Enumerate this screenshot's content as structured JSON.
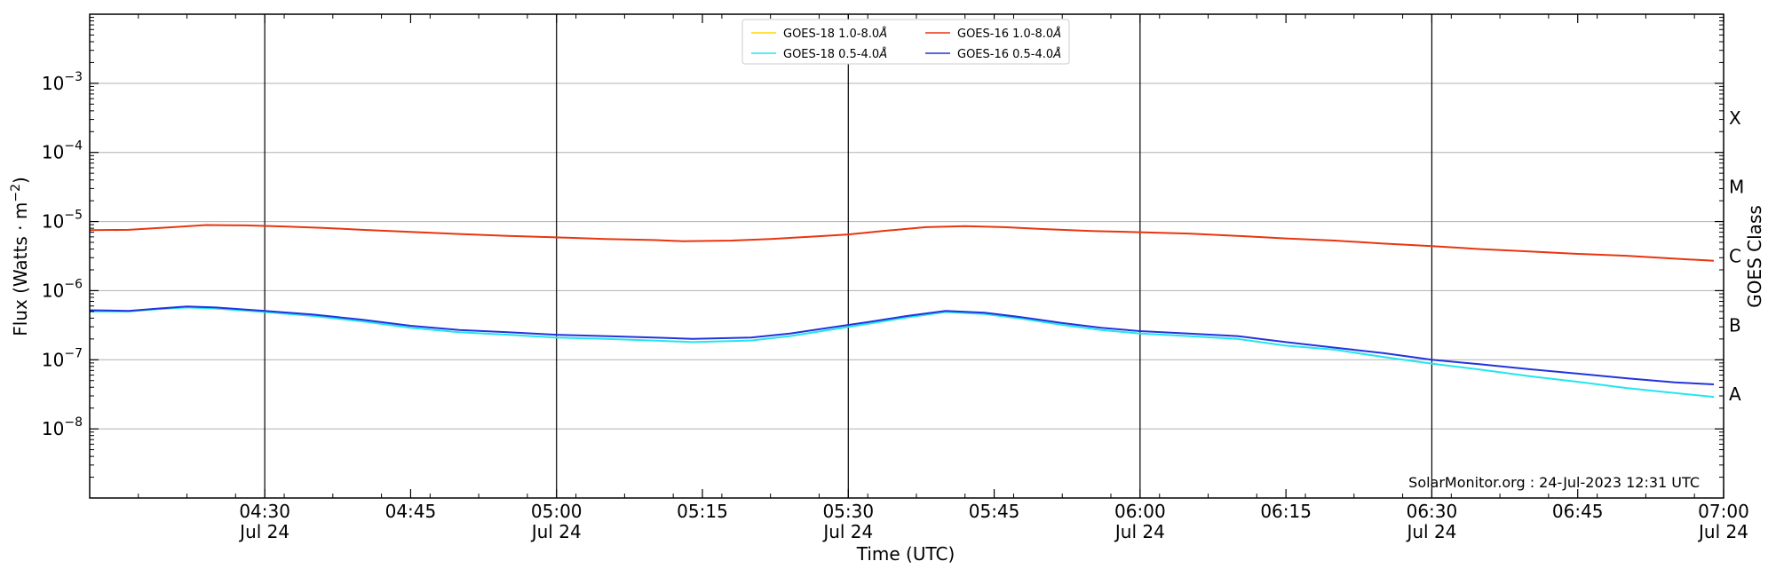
{
  "chart_data": {
    "type": "line",
    "xlabel": "Time (UTC)",
    "ylabel": "Flux (Watts · m",
    "ylabel_sup": "−2",
    "ylabel_close": ")",
    "y2label": "GOES Class",
    "y_scale": "log",
    "ylim": [
      1e-09,
      0.01
    ],
    "xlim": [
      "04:12",
      "07:00"
    ],
    "grid": {
      "horizontal": true,
      "vertical_major": true
    },
    "legend_position": "top-center",
    "y_ticks": [
      {
        "exp": "−8",
        "value": 1e-08
      },
      {
        "exp": "−7",
        "value": 1e-07
      },
      {
        "exp": "−6",
        "value": 1e-06
      },
      {
        "exp": "−5",
        "value": 1e-05
      },
      {
        "exp": "−4",
        "value": 0.0001
      },
      {
        "exp": "−3",
        "value": 0.001
      }
    ],
    "y_tick_base": "10",
    "x_ticks": [
      {
        "time": "04:30",
        "label": "04:30",
        "date": "Jul 24",
        "major": true
      },
      {
        "time": "04:45",
        "label": "04:45",
        "date": "",
        "major": false
      },
      {
        "time": "05:00",
        "label": "05:00",
        "date": "Jul 24",
        "major": true
      },
      {
        "time": "05:15",
        "label": "05:15",
        "date": "",
        "major": false
      },
      {
        "time": "05:30",
        "label": "05:30",
        "date": "Jul 24",
        "major": true
      },
      {
        "time": "05:45",
        "label": "05:45",
        "date": "",
        "major": false
      },
      {
        "time": "06:00",
        "label": "06:00",
        "date": "Jul 24",
        "major": true
      },
      {
        "time": "06:15",
        "label": "06:15",
        "date": "",
        "major": false
      },
      {
        "time": "06:30",
        "label": "06:30",
        "date": "Jul 24",
        "major": true
      },
      {
        "time": "06:45",
        "label": "06:45",
        "date": "",
        "major": false
      },
      {
        "time": "07:00",
        "label": "07:00",
        "date": "Jul 24",
        "major": false
      }
    ],
    "goes_classes": [
      {
        "label": "A",
        "value": 1e-08
      },
      {
        "label": "B",
        "value": 1e-07
      },
      {
        "label": "C",
        "value": 1e-06
      },
      {
        "label": "M",
        "value": 1e-05
      },
      {
        "label": "X",
        "value": 0.0001
      }
    ],
    "credit": "SolarMonitor.org : 24-Jul-2023 12:31 UTC",
    "series": [
      {
        "name": "GOES-18 1.0-8.0",
        "color": "#ffd700",
        "points": []
      },
      {
        "name": "GOES-16 1.0-8.0",
        "color": "#e8350f",
        "points": [
          [
            "04:12",
            7.5e-06
          ],
          [
            "04:16",
            7.6e-06
          ],
          [
            "04:20",
            8.2e-06
          ],
          [
            "04:24",
            8.9e-06
          ],
          [
            "04:28",
            8.8e-06
          ],
          [
            "04:32",
            8.5e-06
          ],
          [
            "04:36",
            8.1e-06
          ],
          [
            "04:40",
            7.6e-06
          ],
          [
            "04:45",
            7.1e-06
          ],
          [
            "04:50",
            6.6e-06
          ],
          [
            "04:55",
            6.2e-06
          ],
          [
            "05:00",
            5.9e-06
          ],
          [
            "05:05",
            5.6e-06
          ],
          [
            "05:10",
            5.4e-06
          ],
          [
            "05:13",
            5.2e-06
          ],
          [
            "05:18",
            5.3e-06
          ],
          [
            "05:22",
            5.6e-06
          ],
          [
            "05:26",
            6e-06
          ],
          [
            "05:30",
            6.5e-06
          ],
          [
            "05:34",
            7.4e-06
          ],
          [
            "05:38",
            8.3e-06
          ],
          [
            "05:42",
            8.6e-06
          ],
          [
            "05:46",
            8.3e-06
          ],
          [
            "05:50",
            7.8e-06
          ],
          [
            "05:55",
            7.3e-06
          ],
          [
            "06:00",
            7e-06
          ],
          [
            "06:05",
            6.7e-06
          ],
          [
            "06:10",
            6.2e-06
          ],
          [
            "06:15",
            5.7e-06
          ],
          [
            "06:20",
            5.3e-06
          ],
          [
            "06:25",
            4.8e-06
          ],
          [
            "06:30",
            4.4e-06
          ],
          [
            "06:35",
            4e-06
          ],
          [
            "06:40",
            3.7e-06
          ],
          [
            "06:45",
            3.4e-06
          ],
          [
            "06:50",
            3.2e-06
          ],
          [
            "06:55",
            2.9e-06
          ],
          [
            "06:59",
            2.7e-06
          ]
        ]
      },
      {
        "name": "GOES-18 0.5-4.0",
        "color": "#22e5ee",
        "points": [
          [
            "04:12",
            5e-07
          ],
          [
            "04:16",
            5e-07
          ],
          [
            "04:19",
            5.4e-07
          ],
          [
            "04:22",
            5.7e-07
          ],
          [
            "04:25",
            5.5e-07
          ],
          [
            "04:30",
            4.9e-07
          ],
          [
            "04:35",
            4.3e-07
          ],
          [
            "04:40",
            3.6e-07
          ],
          [
            "04:45",
            2.9e-07
          ],
          [
            "04:50",
            2.5e-07
          ],
          [
            "04:55",
            2.3e-07
          ],
          [
            "05:00",
            2.1e-07
          ],
          [
            "05:05",
            2e-07
          ],
          [
            "05:10",
            1.9e-07
          ],
          [
            "05:14",
            1.8e-07
          ],
          [
            "05:20",
            1.9e-07
          ],
          [
            "05:24",
            2.2e-07
          ],
          [
            "05:28",
            2.7e-07
          ],
          [
            "05:32",
            3.3e-07
          ],
          [
            "05:36",
            4.1e-07
          ],
          [
            "05:40",
            4.9e-07
          ],
          [
            "05:44",
            4.6e-07
          ],
          [
            "05:48",
            3.9e-07
          ],
          [
            "05:52",
            3.2e-07
          ],
          [
            "05:56",
            2.7e-07
          ],
          [
            "06:00",
            2.4e-07
          ],
          [
            "06:05",
            2.2e-07
          ],
          [
            "06:10",
            2e-07
          ],
          [
            "06:15",
            1.6e-07
          ],
          [
            "06:20",
            1.4e-07
          ],
          [
            "06:25",
            1.1e-07
          ],
          [
            "06:30",
            8.8e-08
          ],
          [
            "06:35",
            7.2e-08
          ],
          [
            "06:40",
            5.8e-08
          ],
          [
            "06:45",
            4.8e-08
          ],
          [
            "06:50",
            3.9e-08
          ],
          [
            "06:55",
            3.3e-08
          ],
          [
            "06:59",
            2.9e-08
          ]
        ]
      },
      {
        "name": "GOES-16 0.5-4.0",
        "color": "#2233dd",
        "points": [
          [
            "04:12",
            5.2e-07
          ],
          [
            "04:16",
            5.1e-07
          ],
          [
            "04:19",
            5.5e-07
          ],
          [
            "04:22",
            5.9e-07
          ],
          [
            "04:25",
            5.7e-07
          ],
          [
            "04:30",
            5.1e-07
          ],
          [
            "04:35",
            4.5e-07
          ],
          [
            "04:40",
            3.8e-07
          ],
          [
            "04:45",
            3.1e-07
          ],
          [
            "04:50",
            2.7e-07
          ],
          [
            "04:55",
            2.5e-07
          ],
          [
            "05:00",
            2.3e-07
          ],
          [
            "05:05",
            2.2e-07
          ],
          [
            "05:10",
            2.1e-07
          ],
          [
            "05:14",
            2e-07
          ],
          [
            "05:20",
            2.1e-07
          ],
          [
            "05:24",
            2.4e-07
          ],
          [
            "05:28",
            2.9e-07
          ],
          [
            "05:32",
            3.5e-07
          ],
          [
            "05:36",
            4.3e-07
          ],
          [
            "05:40",
            5.1e-07
          ],
          [
            "05:44",
            4.8e-07
          ],
          [
            "05:48",
            4.1e-07
          ],
          [
            "05:52",
            3.4e-07
          ],
          [
            "05:56",
            2.9e-07
          ],
          [
            "06:00",
            2.6e-07
          ],
          [
            "06:05",
            2.4e-07
          ],
          [
            "06:10",
            2.2e-07
          ],
          [
            "06:15",
            1.8e-07
          ],
          [
            "06:20",
            1.5e-07
          ],
          [
            "06:25",
            1.25e-07
          ],
          [
            "06:30",
            1e-07
          ],
          [
            "06:35",
            8.6e-08
          ],
          [
            "06:40",
            7.3e-08
          ],
          [
            "06:45",
            6.3e-08
          ],
          [
            "06:50",
            5.4e-08
          ],
          [
            "06:55",
            4.7e-08
          ],
          [
            "06:59",
            4.4e-08
          ]
        ]
      }
    ],
    "legend": [
      {
        "label": "GOES-18 1.0-8.0",
        "unit": "Å",
        "color": "#ffd700"
      },
      {
        "label": "GOES-18 0.5-4.0",
        "unit": "Å",
        "color": "#22e5ee"
      },
      {
        "label": "GOES-16 1.0-8.0",
        "unit": "Å",
        "color": "#e8350f"
      },
      {
        "label": "GOES-16 0.5-4.0",
        "unit": "Å",
        "color": "#2233dd"
      }
    ]
  }
}
